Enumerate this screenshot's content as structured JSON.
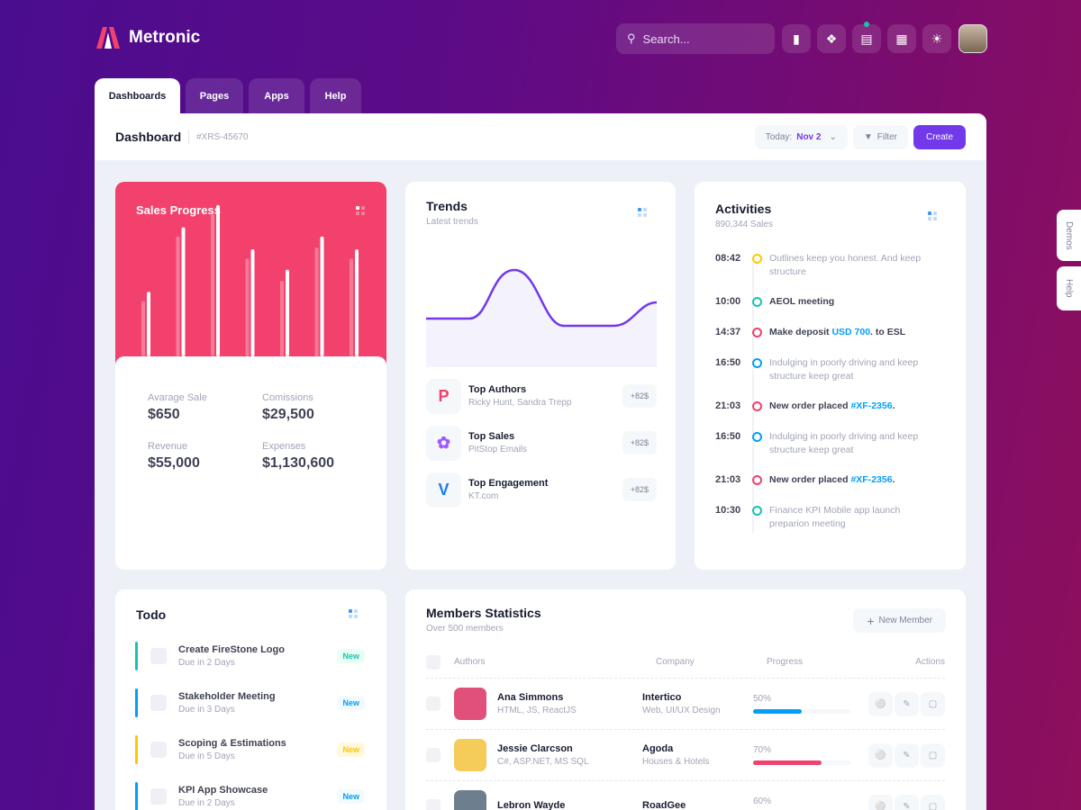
{
  "brand": {
    "name": "Metronic"
  },
  "header": {
    "search_placeholder": "Search...",
    "icons": [
      "chart-icon",
      "apps-icon",
      "chat-icon",
      "grid-icon",
      "sun-icon"
    ]
  },
  "tabs": [
    {
      "label": "Dashboards",
      "active": true
    },
    {
      "label": "Pages"
    },
    {
      "label": "Apps"
    },
    {
      "label": "Help"
    }
  ],
  "toolbar": {
    "title": "Dashboard",
    "id": "#XRS-45670",
    "today_label": "Today:",
    "today_value": "Nov 2",
    "filter": "Filter",
    "create": "Create"
  },
  "side": {
    "demos": "Demos",
    "help": "Help"
  },
  "sales": {
    "title": "Sales Progress",
    "bars": [
      {
        "a": 30,
        "b": 35
      },
      {
        "a": 65,
        "b": 70
      },
      {
        "a": 77,
        "b": 82
      },
      {
        "a": 53,
        "b": 58
      },
      {
        "a": 41,
        "b": 47
      },
      {
        "a": 59,
        "b": 65
      },
      {
        "a": 53,
        "b": 58
      }
    ],
    "stats": [
      {
        "label": "Avarage Sale",
        "value": "$650"
      },
      {
        "label": "Comissions",
        "value": "$29,500"
      },
      {
        "label": "Revenue",
        "value": "$55,000"
      },
      {
        "label": "Expenses",
        "value": "$1,130,600"
      }
    ]
  },
  "trends": {
    "title": "Trends",
    "subtitle": "Latest trends",
    "items": [
      {
        "title": "Top Authors",
        "sub": "Ricky Hunt, Sandra Trepp",
        "badge": "+82$",
        "icon": "p-logo-icon"
      },
      {
        "title": "Top Sales",
        "sub": "PitStop Emails",
        "badge": "+82$",
        "icon": "figma-icon"
      },
      {
        "title": "Top Engagement",
        "sub": "KT.com",
        "badge": "+82$",
        "icon": "vimeo-icon"
      }
    ]
  },
  "activities": {
    "title": "Activities",
    "subtitle": "890,344 Sales",
    "items": [
      {
        "time": "08:42",
        "color": "#ffc700",
        "text": "Outlines keep you honest. And keep structure",
        "muted": true
      },
      {
        "time": "10:00",
        "color": "#17c3b2",
        "text": "AEOL meeting",
        "muted": false
      },
      {
        "time": "14:37",
        "color": "#f1416c",
        "text": "Make deposit ",
        "link": "USD 700",
        "after": ". to ESL",
        "muted": false
      },
      {
        "time": "16:50",
        "color": "#009ef7",
        "text": "Indulging in poorly driving and keep structure keep great",
        "muted": true
      },
      {
        "time": "21:03",
        "color": "#f1416c",
        "text": "New order placed ",
        "link": "#XF-2356",
        "after": ".",
        "muted": false
      },
      {
        "time": "16:50",
        "color": "#009ef7",
        "text": "Indulging in poorly driving and keep structure keep great",
        "muted": true
      },
      {
        "time": "21:03",
        "color": "#f1416c",
        "text": "New order placed ",
        "link": "#XF-2356",
        "after": ".",
        "muted": false
      },
      {
        "time": "10:30",
        "color": "#17c3b2",
        "text": "Finance KPI Mobile app launch preparion meeting",
        "muted": true
      }
    ]
  },
  "todo": {
    "title": "Todo",
    "items": [
      {
        "name": "Create FireStone Logo",
        "due": "Due in 2 Days",
        "badge": "New",
        "color": "#17c3b2",
        "bg": "#e8fff3"
      },
      {
        "name": "Stakeholder Meeting",
        "due": "Due in 3 Days",
        "badge": "New",
        "color": "#009ef7",
        "bg": "#f1faff"
      },
      {
        "name": "Scoping & Estimations",
        "due": "Due in 5 Days",
        "badge": "New",
        "color": "#ffc700",
        "bg": "#fff8dd"
      },
      {
        "name": "KPI App Showcase",
        "due": "Due in 2 Days",
        "badge": "New",
        "color": "#009ef7",
        "bg": "#f1faff"
      }
    ]
  },
  "members": {
    "title": "Members Statistics",
    "subtitle": "Over 500 members",
    "new_button": "New Member",
    "columns": [
      "Authors",
      "Company",
      "Progress",
      "Actions"
    ],
    "rows": [
      {
        "name": "Ana Simmons",
        "skills": "HTML, JS, ReactJS",
        "company": "Intertico",
        "company_sub": "Web, UI/UX Design",
        "progress": 50,
        "color": "#009ef7",
        "avatar": "#e0507a"
      },
      {
        "name": "Jessie Clarcson",
        "skills": "C#, ASP.NET, MS SQL",
        "company": "Agoda",
        "company_sub": "Houses & Hotels",
        "progress": 70,
        "color": "#f1416c",
        "avatar": "#f5cc5a"
      },
      {
        "name": "Lebron Wayde",
        "skills": "",
        "company": "RoadGee",
        "company_sub": "",
        "progress": 60,
        "color": "#50cd89",
        "avatar": "#6d7f8f"
      }
    ]
  }
}
